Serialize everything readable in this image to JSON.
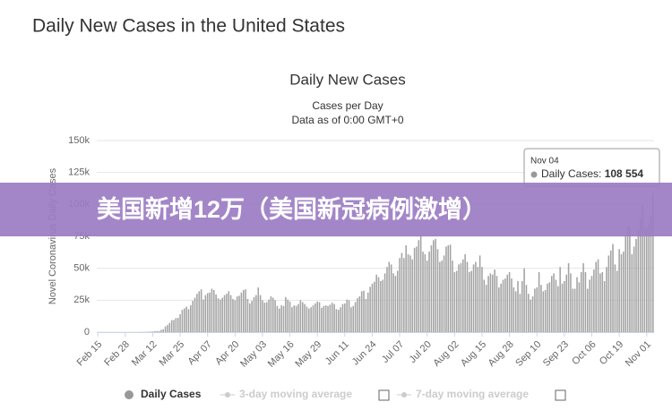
{
  "page_title": "Daily New Cases in the United States",
  "banner": "美国新增12万（美国新冠病例激增）",
  "chart_data": {
    "type": "bar",
    "title": "Daily New Cases",
    "subtitle": [
      "Cases per Day",
      "Data as of 0:00 GMT+0"
    ],
    "y_label": "Novel Coronavirus Daily Cases",
    "categories": [
      "Feb 15",
      null,
      null,
      null,
      null,
      null,
      null,
      null,
      null,
      null,
      null,
      null,
      null,
      "Feb 28",
      null,
      null,
      null,
      null,
      null,
      null,
      null,
      null,
      null,
      null,
      null,
      null,
      "Mar 12",
      null,
      null,
      null,
      null,
      null,
      null,
      null,
      null,
      null,
      null,
      null,
      null,
      "Mar 25",
      null,
      null,
      null,
      null,
      null,
      null,
      null,
      null,
      null,
      null,
      null,
      null,
      "Apr 07",
      null,
      null,
      null,
      null,
      null,
      null,
      null,
      null,
      null,
      null,
      null,
      null,
      "Apr 20",
      null,
      null,
      null,
      null,
      null,
      null,
      null,
      null,
      null,
      null,
      null,
      null,
      "May 03",
      null,
      null,
      null,
      null,
      null,
      null,
      null,
      null,
      null,
      null,
      null,
      null,
      "May 16",
      null,
      null,
      null,
      null,
      null,
      null,
      null,
      null,
      null,
      null,
      null,
      null,
      "May 29",
      null,
      null,
      null,
      null,
      null,
      null,
      null,
      null,
      null,
      null,
      null,
      null,
      "Jun 11",
      null,
      null,
      null,
      null,
      null,
      null,
      null,
      null,
      null,
      null,
      null,
      null,
      "Jun 24",
      null,
      null,
      null,
      null,
      null,
      null,
      null,
      null,
      null,
      null,
      null,
      null,
      "Jul 07",
      null,
      null,
      null,
      null,
      null,
      null,
      null,
      null,
      null,
      null,
      null,
      null,
      "Jul 20",
      null,
      null,
      null,
      null,
      null,
      null,
      null,
      null,
      null,
      null,
      null,
      null,
      "Aug 02",
      null,
      null,
      null,
      null,
      null,
      null,
      null,
      null,
      null,
      null,
      null,
      null,
      "Aug 15",
      null,
      null,
      null,
      null,
      null,
      null,
      null,
      null,
      null,
      null,
      null,
      null,
      "Aug 28",
      null,
      null,
      null,
      null,
      null,
      null,
      null,
      null,
      null,
      null,
      null,
      null,
      "Sep 10",
      null,
      null,
      null,
      null,
      null,
      null,
      null,
      null,
      null,
      null,
      null,
      null,
      "Sep 23",
      null,
      null,
      null,
      null,
      null,
      null,
      null,
      null,
      null,
      null,
      null,
      null,
      "Oct 06",
      null,
      null,
      null,
      null,
      null,
      null,
      null,
      null,
      null,
      null,
      null,
      null,
      "Oct 19",
      null,
      null,
      null,
      null,
      null,
      null,
      null,
      null,
      null,
      null,
      null,
      null,
      "Nov 01",
      null,
      null,
      null
    ],
    "series": [
      {
        "name": "Daily Cases",
        "color": "#a3a3a3",
        "values": [
          0,
          0,
          0,
          0,
          0,
          0,
          0,
          0,
          0,
          0,
          0,
          0,
          0,
          0,
          0,
          10,
          20,
          30,
          30,
          70,
          80,
          120,
          100,
          180,
          300,
          400,
          500,
          700,
          800,
          900,
          1800,
          2300,
          4500,
          5500,
          7200,
          9400,
          9600,
          11000,
          11200,
          14000,
          17500,
          18600,
          20000,
          18000,
          21000,
          24500,
          27000,
          30000,
          32000,
          33500,
          25500,
          29000,
          30500,
          31000,
          34000,
          33000,
          29500,
          26500,
          25500,
          27000,
          29000,
          30000,
          32000,
          29000,
          26000,
          25000,
          28000,
          28500,
          31000,
          33000,
          33500,
          26000,
          22500,
          24500,
          27500,
          29000,
          35000,
          29000,
          25000,
          23000,
          23500,
          25500,
          28000,
          27000,
          25000,
          20500,
          18500,
          21000,
          20500,
          27500,
          25500,
          24000,
          19500,
          21000,
          20500,
          22000,
          25000,
          23500,
          22000,
          20000,
          18500,
          19500,
          21000,
          22500,
          24000,
          23500,
          19000,
          20500,
          21000,
          20500,
          21500,
          23000,
          22000,
          18000,
          17500,
          19500,
          22000,
          22500,
          25500,
          25000,
          19500,
          20500,
          23500,
          26500,
          28000,
          32000,
          32500,
          26000,
          31000,
          35500,
          38000,
          39500,
          45000,
          43000,
          40000,
          41000,
          46000,
          51000,
          55000,
          53000,
          46000,
          44000,
          48000,
          58000,
          62000,
          58000,
          68000,
          61000,
          60000,
          57000,
          66000,
          67000,
          72000,
          75000,
          63000,
          61000,
          56000,
          63000,
          68000,
          72000,
          73000,
          65000,
          55000,
          56000,
          60000,
          67000,
          68000,
          68500,
          56000,
          47000,
          48000,
          53000,
          54000,
          57000,
          61000,
          55000,
          47000,
          48000,
          53000,
          55000,
          51000,
          60000,
          51000,
          41000,
          37000,
          44000,
          46000,
          45000,
          49000,
          44000,
          35000,
          38000,
          41000,
          42000,
          45000,
          47000,
          42000,
          35000,
          32000,
          40000,
          30000,
          40000,
          50000,
          37000,
          30000,
          25500,
          28000,
          34000,
          35000,
          47000,
          37000,
          32000,
          33000,
          38000,
          39000,
          44000,
          46000,
          41000,
          36000,
          51000,
          38000,
          40000,
          45000,
          54000,
          46000,
          34000,
          34000,
          43000,
          39000,
          47000,
          54000,
          47000,
          34000,
          41000,
          44000,
          49000,
          55000,
          57000,
          46000,
          47000,
          40000,
          51000,
          60000,
          64000,
          69000,
          53000,
          48000,
          65000,
          61000,
          63000,
          75000,
          83000,
          82000,
          61000,
          67000,
          73000,
          80000,
          89000,
          99000,
          82000,
          81000,
          84000,
          91000,
          108554
        ]
      }
    ],
    "inactive_legend": [
      "3-day moving average",
      "7-day moving average"
    ],
    "ylim": [
      0,
      150000
    ],
    "yticks": [
      0,
      {
        "value": 25000,
        "label": "25k"
      },
      {
        "value": 50000,
        "label": "50k"
      },
      {
        "value": 75000,
        "label": "75k"
      },
      {
        "value": 100000,
        "label": "100k"
      },
      {
        "value": 125000,
        "label": "125k"
      },
      {
        "value": 150000,
        "label": "150k"
      }
    ],
    "grid": true,
    "tooltip": {
      "title": "Nov 04",
      "label": "Daily Cases:",
      "value_label": "108 554"
    }
  }
}
